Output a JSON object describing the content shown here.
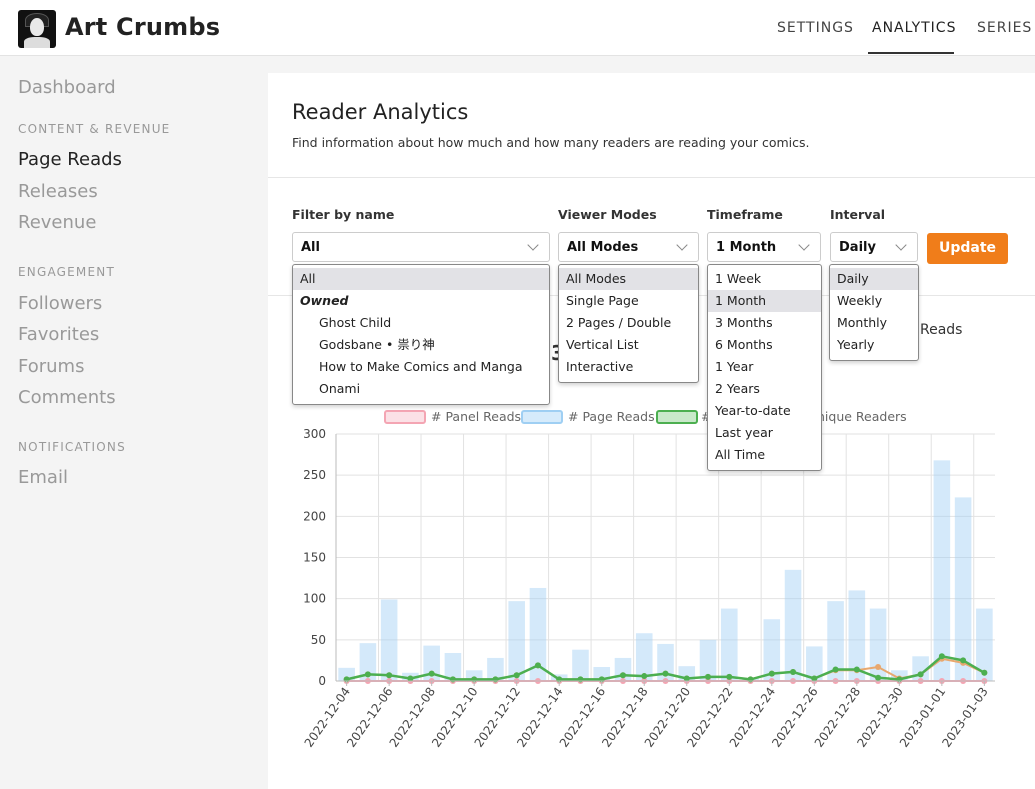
{
  "header": {
    "brand": "Art Crumbs",
    "nav": [
      "SETTINGS",
      "ANALYTICS",
      "SERIES"
    ]
  },
  "sidebar": {
    "dashboard": "Dashboard",
    "content_head": "CONTENT & REVENUE",
    "content_items": [
      "Page Reads",
      "Releases",
      "Revenue"
    ],
    "engagement_head": "ENGAGEMENT",
    "engagement_items": [
      "Followers",
      "Favorites",
      "Forums",
      "Comments"
    ],
    "notifications_head": "NOTIFICATIONS",
    "notifications_items": [
      "Email"
    ]
  },
  "main": {
    "title": "Reader Analytics",
    "description": "Find information about how much and how many readers are reading your comics."
  },
  "filters": {
    "name_label": "Filter by name",
    "name_value": "All",
    "viewer_label": "Viewer Modes",
    "viewer_value": "All Modes",
    "timeframe_label": "Timeframe",
    "timeframe_value": "1 Month",
    "interval_label": "Interval",
    "interval_value": "Daily",
    "update_label": "Update"
  },
  "dropdowns": {
    "name_options": [
      "All",
      "Owned",
      "Ghost Child",
      "Godsbane • 祟り神",
      "How to Make Comics and Manga",
      "Onami"
    ],
    "viewer_options": [
      "All Modes",
      "Single Page",
      "2 Pages / Double",
      "Vertical List",
      "Interactive"
    ],
    "timeframe_options": [
      "1 Week",
      "1 Month",
      "3 Months",
      "6 Months",
      "1 Year",
      "2 Years",
      "Year-to-date",
      "Last year",
      "All Time"
    ],
    "interval_options": [
      "Daily",
      "Weekly",
      "Monthly",
      "Yearly"
    ]
  },
  "chart_peek": {
    "l_fragment": "l",
    "three_fragment": "3",
    "reads_fragment": "Reads",
    "unique_fragment": "nique Readers"
  },
  "colors": {
    "accent": "#f07d1a",
    "panel_reads": "#f4a5b3",
    "page_reads": "#9fcff3",
    "green_series": "#4caf50",
    "orange_series": "#e8a86f"
  },
  "chart_data": {
    "type": "bar",
    "legend": [
      "# Panel Reads",
      "# Page Reads",
      "#",
      "nique Readers"
    ],
    "x_tick_labels": [
      "2022-12-04",
      "2022-12-06",
      "2022-12-08",
      "2022-12-10",
      "2022-12-12",
      "2022-12-14",
      "2022-12-16",
      "2022-12-18",
      "2022-12-20",
      "2022-12-22",
      "2022-12-24",
      "2022-12-26",
      "2022-12-28",
      "2022-12-30",
      "2023-01-01",
      "2023-01-03"
    ],
    "y_ticks": [
      "0",
      "50",
      "100",
      "150",
      "200",
      "250",
      "300"
    ],
    "ylim": [
      0,
      300
    ],
    "series": [
      {
        "name": "# Page Reads",
        "values": [
          16,
          46,
          99,
          10,
          43,
          34,
          13,
          28,
          97,
          113,
          8,
          38,
          17,
          28,
          58,
          45,
          18,
          50,
          88,
          3,
          75,
          135,
          42,
          97,
          110,
          88,
          13,
          30,
          268,
          223,
          88
        ]
      },
      {
        "name": "# Panel Reads",
        "values": [
          0,
          0,
          0,
          0,
          0,
          0,
          0,
          0,
          0,
          0,
          0,
          0,
          0,
          0,
          0,
          0,
          0,
          0,
          0,
          0,
          0,
          0,
          0,
          0,
          0,
          0,
          0,
          0,
          0,
          0,
          0
        ]
      },
      {
        "name": "#",
        "values": [
          2,
          8,
          7,
          3,
          9,
          2,
          2,
          2,
          7,
          19,
          2,
          2,
          2,
          7,
          6,
          9,
          3,
          5,
          5,
          2,
          9,
          11,
          3,
          14,
          14,
          4,
          2,
          8,
          30,
          25,
          10
        ]
      },
      {
        "name": "nique Readers",
        "values": [
          2,
          8,
          7,
          3,
          9,
          2,
          2,
          2,
          7,
          19,
          2,
          2,
          2,
          7,
          6,
          9,
          3,
          5,
          5,
          2,
          9,
          11,
          3,
          13,
          13,
          17,
          3,
          8,
          27,
          22,
          10
        ]
      }
    ]
  }
}
